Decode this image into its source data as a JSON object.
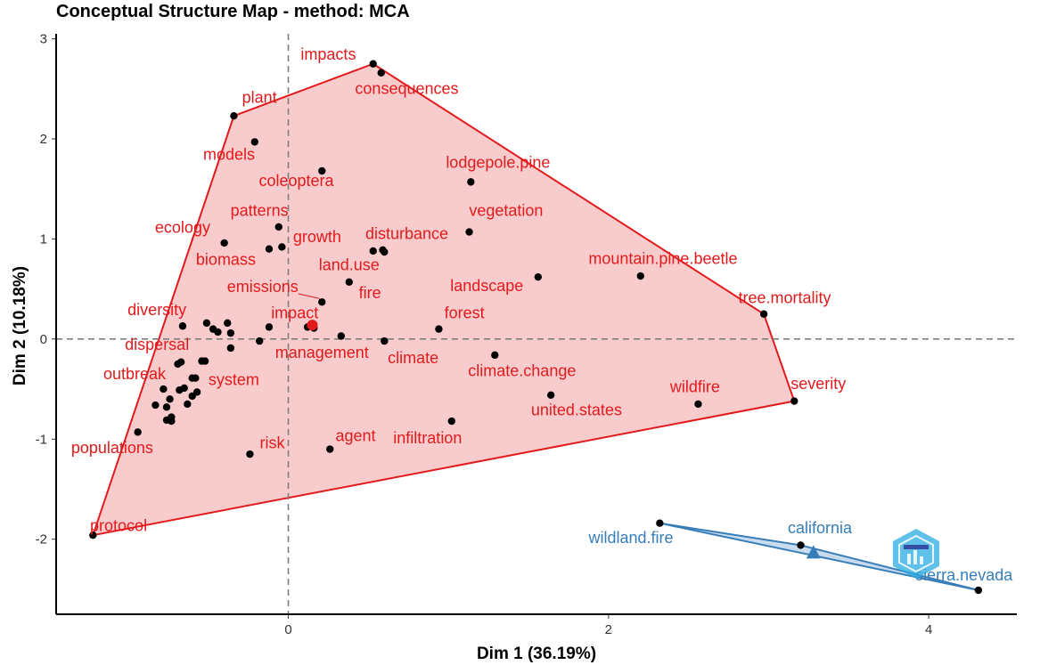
{
  "chart_data": {
    "type": "scatter",
    "title": "Conceptual Structure Map - method: MCA",
    "xlabel": "Dim 1 (36.19%)",
    "ylabel": "Dim 2 (10.18%)",
    "xlim": [
      -1.45,
      4.55
    ],
    "ylim": [
      -2.75,
      3.05
    ],
    "xticks": [
      0,
      2,
      4
    ],
    "yticks": [
      -2,
      -1,
      0,
      1,
      2,
      3
    ],
    "reference_lines": {
      "x": 0,
      "y": 0
    },
    "clusters": [
      {
        "id": 1,
        "color": "#e31a1c",
        "fill": "#f8cccc",
        "hull": [
          [
            -1.22,
            -1.96
          ],
          [
            -0.34,
            2.23
          ],
          [
            0.53,
            2.75
          ],
          [
            2.97,
            0.25
          ],
          [
            3.16,
            -0.62
          ]
        ],
        "centroid": [
          0.15,
          0.14
        ],
        "labels": [
          {
            "text": "impacts",
            "x": 0.53,
            "y": 2.75
          },
          {
            "text": "consequences",
            "x": 0.58,
            "y": 2.66
          },
          {
            "text": "plant",
            "x": -0.34,
            "y": 2.23
          },
          {
            "text": "models",
            "x": -0.21,
            "y": 1.97
          },
          {
            "text": "coleoptera",
            "x": 0.21,
            "y": 1.68
          },
          {
            "text": "lodgepole.pine",
            "x": 1.14,
            "y": 1.57
          },
          {
            "text": "patterns",
            "x": -0.06,
            "y": 1.12
          },
          {
            "text": "vegetation",
            "x": 1.13,
            "y": 1.07
          },
          {
            "text": "ecology",
            "x": -0.4,
            "y": 0.96
          },
          {
            "text": "growth",
            "x": -0.04,
            "y": 0.92
          },
          {
            "text": "disturbance",
            "x": 0.59,
            "y": 0.89
          },
          {
            "text": "biomass",
            "x": -0.12,
            "y": 0.9
          },
          {
            "text": "land.use",
            "x": 0.53,
            "y": 0.88
          },
          {
            "text": "mountain.pine.beetle",
            "x": 2.2,
            "y": 0.63
          },
          {
            "text": "landscape",
            "x": 1.56,
            "y": 0.62
          },
          {
            "text": "emissions",
            "x": 0.21,
            "y": 0.37
          },
          {
            "text": "fire",
            "x": 0.38,
            "y": 0.57
          },
          {
            "text": "tree.mortality",
            "x": 2.97,
            "y": 0.25
          },
          {
            "text": "diversity",
            "x": -0.66,
            "y": 0.13
          },
          {
            "text": "impact",
            "x": 0.12,
            "y": 0.12
          },
          {
            "text": "forest",
            "x": 0.94,
            "y": 0.1
          },
          {
            "text": "dispersal",
            "x": -0.51,
            "y": 0.16
          },
          {
            "text": "management",
            "x": 0.16,
            "y": 0.11
          },
          {
            "text": "climate",
            "x": 0.6,
            "y": -0.02
          },
          {
            "text": "climate.change",
            "x": 1.29,
            "y": -0.16
          },
          {
            "text": "outbreak",
            "x": -0.54,
            "y": -0.22
          },
          {
            "text": "system",
            "x": -0.58,
            "y": -0.39
          },
          {
            "text": "united.states",
            "x": 1.64,
            "y": -0.56
          },
          {
            "text": "wildfire",
            "x": 2.56,
            "y": -0.65
          },
          {
            "text": "severity",
            "x": 3.16,
            "y": -0.62
          },
          {
            "text": "infiltration",
            "x": 1.02,
            "y": -0.82
          },
          {
            "text": "populations",
            "x": -0.94,
            "y": -0.93
          },
          {
            "text": "agent",
            "x": 0.26,
            "y": -1.1
          },
          {
            "text": "risk",
            "x": -0.24,
            "y": -1.15
          },
          {
            "text": "protocol",
            "x": -1.22,
            "y": -1.96
          }
        ],
        "unlabeled_points": [
          [
            -0.38,
            0.16
          ],
          [
            -0.44,
            0.07
          ],
          [
            -0.36,
            0.06
          ],
          [
            -0.47,
            0.1
          ],
          [
            -0.36,
            -0.09
          ],
          [
            -0.18,
            -0.02
          ],
          [
            -0.12,
            0.12
          ],
          [
            0.33,
            0.03
          ],
          [
            0.6,
            0.87
          ],
          [
            -0.52,
            -0.22
          ],
          [
            -0.67,
            -0.23
          ],
          [
            -0.69,
            -0.25
          ],
          [
            -0.78,
            -0.5
          ],
          [
            -0.74,
            -0.6
          ],
          [
            -0.68,
            -0.51
          ],
          [
            -0.57,
            -0.53
          ],
          [
            -0.63,
            -0.65
          ],
          [
            -0.76,
            -0.68
          ],
          [
            -0.73,
            -0.78
          ],
          [
            -0.76,
            -0.81
          ],
          [
            -0.83,
            -0.66
          ],
          [
            -0.73,
            -0.82
          ],
          [
            -0.6,
            -0.57
          ],
          [
            -0.65,
            -0.49
          ],
          [
            -0.6,
            -0.39
          ]
        ]
      },
      {
        "id": 2,
        "color": "#377eb8",
        "fill": "#c9dcef",
        "hull": [
          [
            2.32,
            -1.84
          ],
          [
            3.2,
            -2.06
          ],
          [
            4.31,
            -2.51
          ]
        ],
        "centroid": [
          3.28,
          -2.14
        ],
        "labels": [
          {
            "text": "wildland.fire",
            "x": 2.32,
            "y": -1.84
          },
          {
            "text": "california",
            "x": 3.2,
            "y": -2.06
          },
          {
            "text": "sierra.nevada",
            "x": 4.31,
            "y": -2.51
          }
        ],
        "unlabeled_points": []
      }
    ],
    "label_positions": {
      "impacts": [
        0.25,
        2.79
      ],
      "consequences": [
        0.74,
        2.45
      ],
      "plant": [
        -0.18,
        2.36
      ],
      "models": [
        -0.37,
        1.79
      ],
      "coleoptera": [
        0.05,
        1.53
      ],
      "lodgepole.pine": [
        1.31,
        1.71
      ],
      "patterns": [
        -0.18,
        1.23
      ],
      "vegetation": [
        1.36,
        1.23
      ],
      "ecology": [
        -0.66,
        1.06
      ],
      "growth": [
        0.18,
        0.97
      ],
      "disturbance": [
        0.74,
        1.0
      ],
      "biomass": [
        -0.39,
        0.74
      ],
      "land.use": [
        0.38,
        0.69
      ],
      "mountain.pine.beetle": [
        2.34,
        0.75
      ],
      "landscape": [
        1.24,
        0.48
      ],
      "emissions": [
        -0.16,
        0.47
      ],
      "fire": [
        0.51,
        0.41
      ],
      "tree.mortality": [
        3.1,
        0.36
      ],
      "diversity": [
        -0.82,
        0.24
      ],
      "impact": [
        0.04,
        0.21
      ],
      "forest": [
        1.1,
        0.21
      ],
      "dispersal": [
        -0.82,
        -0.11
      ],
      "management": [
        0.21,
        -0.19
      ],
      "climate": [
        0.78,
        -0.24
      ],
      "climate.change": [
        1.46,
        -0.37
      ],
      "outbreak": [
        -0.96,
        -0.4
      ],
      "system": [
        -0.34,
        -0.46
      ],
      "united.states": [
        1.8,
        -0.76
      ],
      "wildfire": [
        2.54,
        -0.53
      ],
      "severity": [
        3.31,
        -0.5
      ],
      "infiltration": [
        0.87,
        -1.04
      ],
      "populations": [
        -1.1,
        -1.14
      ],
      "agent": [
        0.42,
        -1.02
      ],
      "risk": [
        -0.1,
        -1.09
      ],
      "protocol": [
        -1.06,
        -1.92
      ],
      "wildland.fire": [
        2.14,
        -2.04
      ],
      "california": [
        3.32,
        -1.94
      ],
      "sierra.nevada": [
        4.22,
        -2.41
      ]
    },
    "grid": false
  }
}
